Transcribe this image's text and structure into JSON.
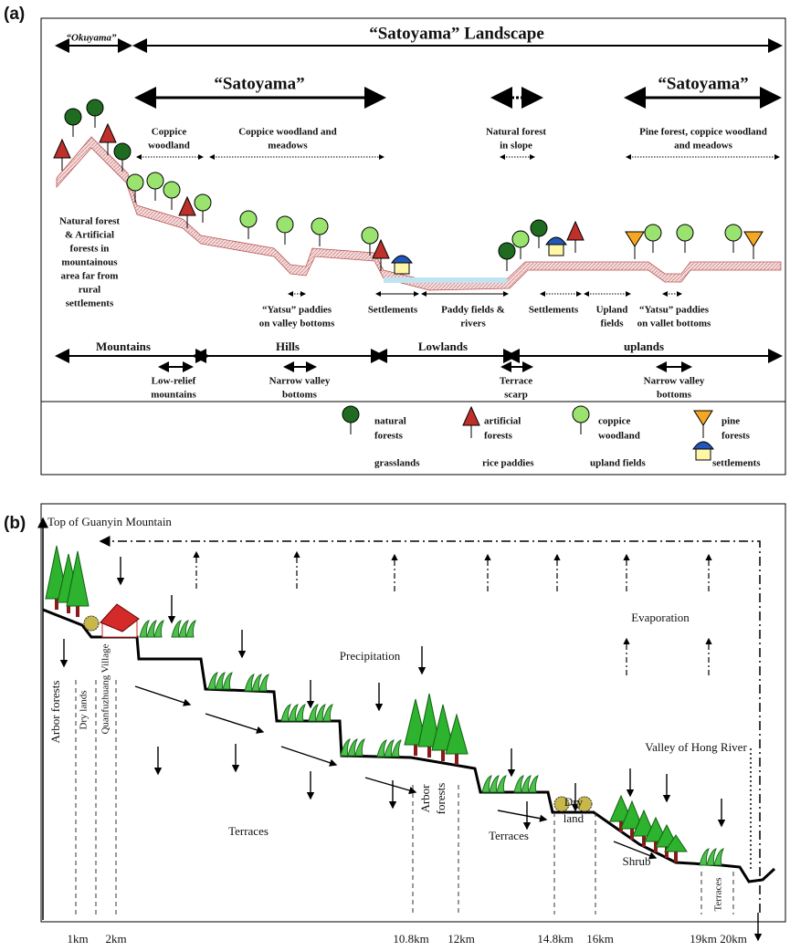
{
  "panel_a": {
    "label": "(a)",
    "okuyama": "“Okuyama”",
    "landscape": "“Satoyama” Landscape",
    "satoyama_left": "“Satoyama”",
    "satoyama_right": "“Satoyama”",
    "zones": [
      [
        "Coppice",
        "woodland"
      ],
      [
        "Coppice woodland and",
        "meadows"
      ],
      [
        "Natural forest",
        "in slope"
      ],
      [
        "Pine forest, coppice woodland",
        "and meadows"
      ]
    ],
    "far_note": [
      "Natural forest",
      "& Artificial",
      "forests in",
      "mountainous",
      "area far from",
      "rural",
      "settlements"
    ],
    "features": [
      [
        "“Yatsu” paddies",
        "on valley bottoms"
      ],
      [
        "Settlements"
      ],
      [
        "Paddy fields &",
        "rivers"
      ],
      [
        "Settlements"
      ],
      [
        "Upland",
        "fields"
      ],
      [
        "“Yatsu” paddies",
        "on vallet bottoms"
      ]
    ],
    "landforms": [
      "Mountains",
      "Hills",
      "Lowlands",
      "uplands"
    ],
    "sub_landforms": [
      [
        "Low-relief",
        "mountains"
      ],
      [
        "Narrow valley",
        "bottoms"
      ],
      [
        "Terrace",
        "scarp"
      ],
      [
        "Narrow valley",
        "bottoms"
      ]
    ],
    "legend": [
      [
        "natural",
        "forests"
      ],
      [
        "artificial",
        "forests"
      ],
      [
        "coppice",
        "woodland"
      ],
      [
        "pine",
        "forests"
      ],
      [
        "grasslands"
      ],
      [
        "rice paddies"
      ],
      [
        "upland fields"
      ],
      [
        "settlements"
      ]
    ]
  },
  "panel_b": {
    "label": "(b)",
    "top": "Top of Guanyin Mountain",
    "evaporation": "Evaporation",
    "precipitation": "Precipitation",
    "valley": "Valley of Hong River",
    "zones": [
      [
        "Arbor forests"
      ],
      [
        "Dry lands"
      ],
      [
        "Quanfuzhuang Village"
      ],
      [
        "Terraces"
      ],
      [
        "Arbor",
        "forests"
      ],
      [
        "Terraces"
      ],
      [
        "Dry",
        "land"
      ],
      [
        "Shrub"
      ],
      [
        "Terraces"
      ]
    ],
    "distances": [
      "1km",
      "2km",
      "10.8km",
      "12km",
      "14.8km",
      "16km",
      "19km",
      "20km"
    ]
  }
}
